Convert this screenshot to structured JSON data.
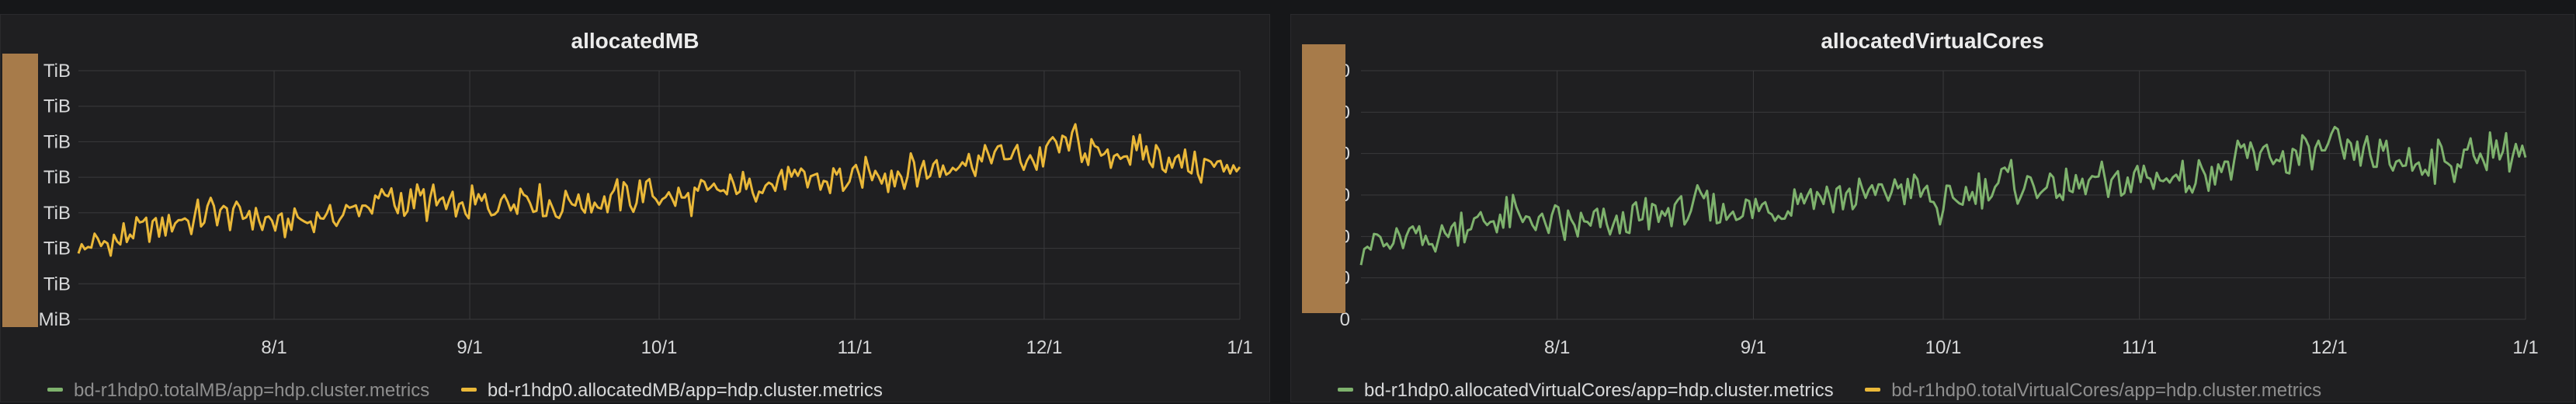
{
  "colors": {
    "green": "#7eb26d",
    "yellow": "#eab839",
    "grid": "#3a3a3c",
    "overlay": "#a77b4a"
  },
  "chart_data": [
    {
      "type": "line",
      "title": "allocatedMB",
      "x_ticks": [
        "8/1",
        "9/1",
        "10/1",
        "11/1",
        "12/1",
        "1/1"
      ],
      "y_ticks": [
        "MiB",
        "TiB",
        "TiB",
        "TiB",
        "TiB",
        "TiB",
        "TiB",
        "TiB"
      ],
      "x_range": [
        "2019-07-01",
        "2020-01-01"
      ],
      "y_range": [
        0,
        7
      ],
      "grid": true,
      "legend": "bottom-left",
      "series": [
        {
          "name": "bd-r1hdp0.totalMB/app=hdp.cluster.metrics",
          "color": "#7eb26d",
          "visible": false,
          "values": []
        },
        {
          "name": "bd-r1hdp0.allocatedMB/app=hdp.cluster.metrics",
          "color": "#eab839",
          "visible": true,
          "values": [
            2.05,
            2.2,
            2.6,
            2.8,
            3.1,
            2.9,
            2.7,
            2.85,
            3.05,
            3.4,
            3.3,
            3.15,
            3.2,
            3.5,
            3.2,
            3.35,
            3.45,
            3.5,
            3.4,
            3.6,
            3.8,
            4.0,
            3.9,
            4.05,
            4.15,
            4.2,
            4.5,
            4.6,
            4.5,
            5.1,
            4.6,
            4.7,
            4.55,
            4.2,
            4.5
          ]
        }
      ]
    },
    {
      "type": "line",
      "title": "allocatedVirtualCores",
      "x_ticks": [
        "8/1",
        "9/1",
        "10/1",
        "11/1",
        "12/1",
        "1/1"
      ],
      "y_ticks": [
        "0",
        "0",
        "0",
        "0",
        "0",
        "0",
        "0"
      ],
      "x_range": [
        "2019-07-01",
        "2020-01-01"
      ],
      "y_range": [
        0,
        6
      ],
      "grid": true,
      "legend": "bottom-left",
      "series": [
        {
          "name": "bd-r1hdp0.allocatedVirtualCores/app=hdp.cluster.metrics",
          "color": "#7eb26d",
          "visible": true,
          "values": [
            1.85,
            1.8,
            2.0,
            2.3,
            2.4,
            2.45,
            2.25,
            2.3,
            2.45,
            2.6,
            2.7,
            2.6,
            2.55,
            3.05,
            2.9,
            3.05,
            3.15,
            2.7,
            3.05,
            3.35,
            3.15,
            3.25,
            3.25,
            3.4,
            3.45,
            3.6,
            3.95,
            3.85,
            4.05,
            4.1,
            3.8,
            3.8,
            3.85,
            4.05,
            3.95
          ]
        },
        {
          "name": "bd-r1hdp0.totalVirtualCores/app=hdp.cluster.metrics",
          "color": "#eab839",
          "visible": false,
          "values": []
        }
      ]
    }
  ]
}
